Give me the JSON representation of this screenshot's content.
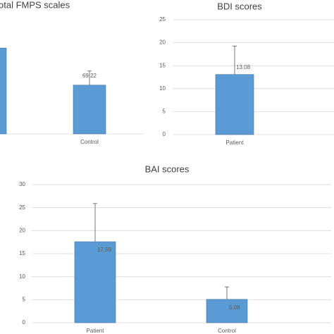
{
  "chart_data": [
    {
      "type": "bar",
      "title": "otal FMPS scales",
      "categories": [
        null,
        "Control"
      ],
      "values": [
        121.81,
        69.22
      ],
      "errors": [
        null,
        20
      ],
      "ylim": [
        0,
        180
      ],
      "grid": false,
      "color": "#5b9bd5"
    },
    {
      "type": "bar",
      "title": "BDI scores",
      "categories": [
        "Patient"
      ],
      "values": [
        13.08
      ],
      "errors": [
        6.2
      ],
      "ylim": [
        0,
        25
      ],
      "yticks": [
        0,
        5,
        10,
        15,
        20,
        25
      ],
      "grid": true,
      "color": "#5b9bd5"
    },
    {
      "type": "bar",
      "title": "BAI scores",
      "categories": [
        "Patient",
        "Control"
      ],
      "values": [
        17.59,
        5.08
      ],
      "errors": [
        8.3,
        2.7
      ],
      "ylim": [
        0,
        30
      ],
      "yticks": [
        0,
        5,
        10,
        15,
        20,
        25,
        30
      ],
      "grid": true,
      "color": "#5b9bd5"
    }
  ]
}
